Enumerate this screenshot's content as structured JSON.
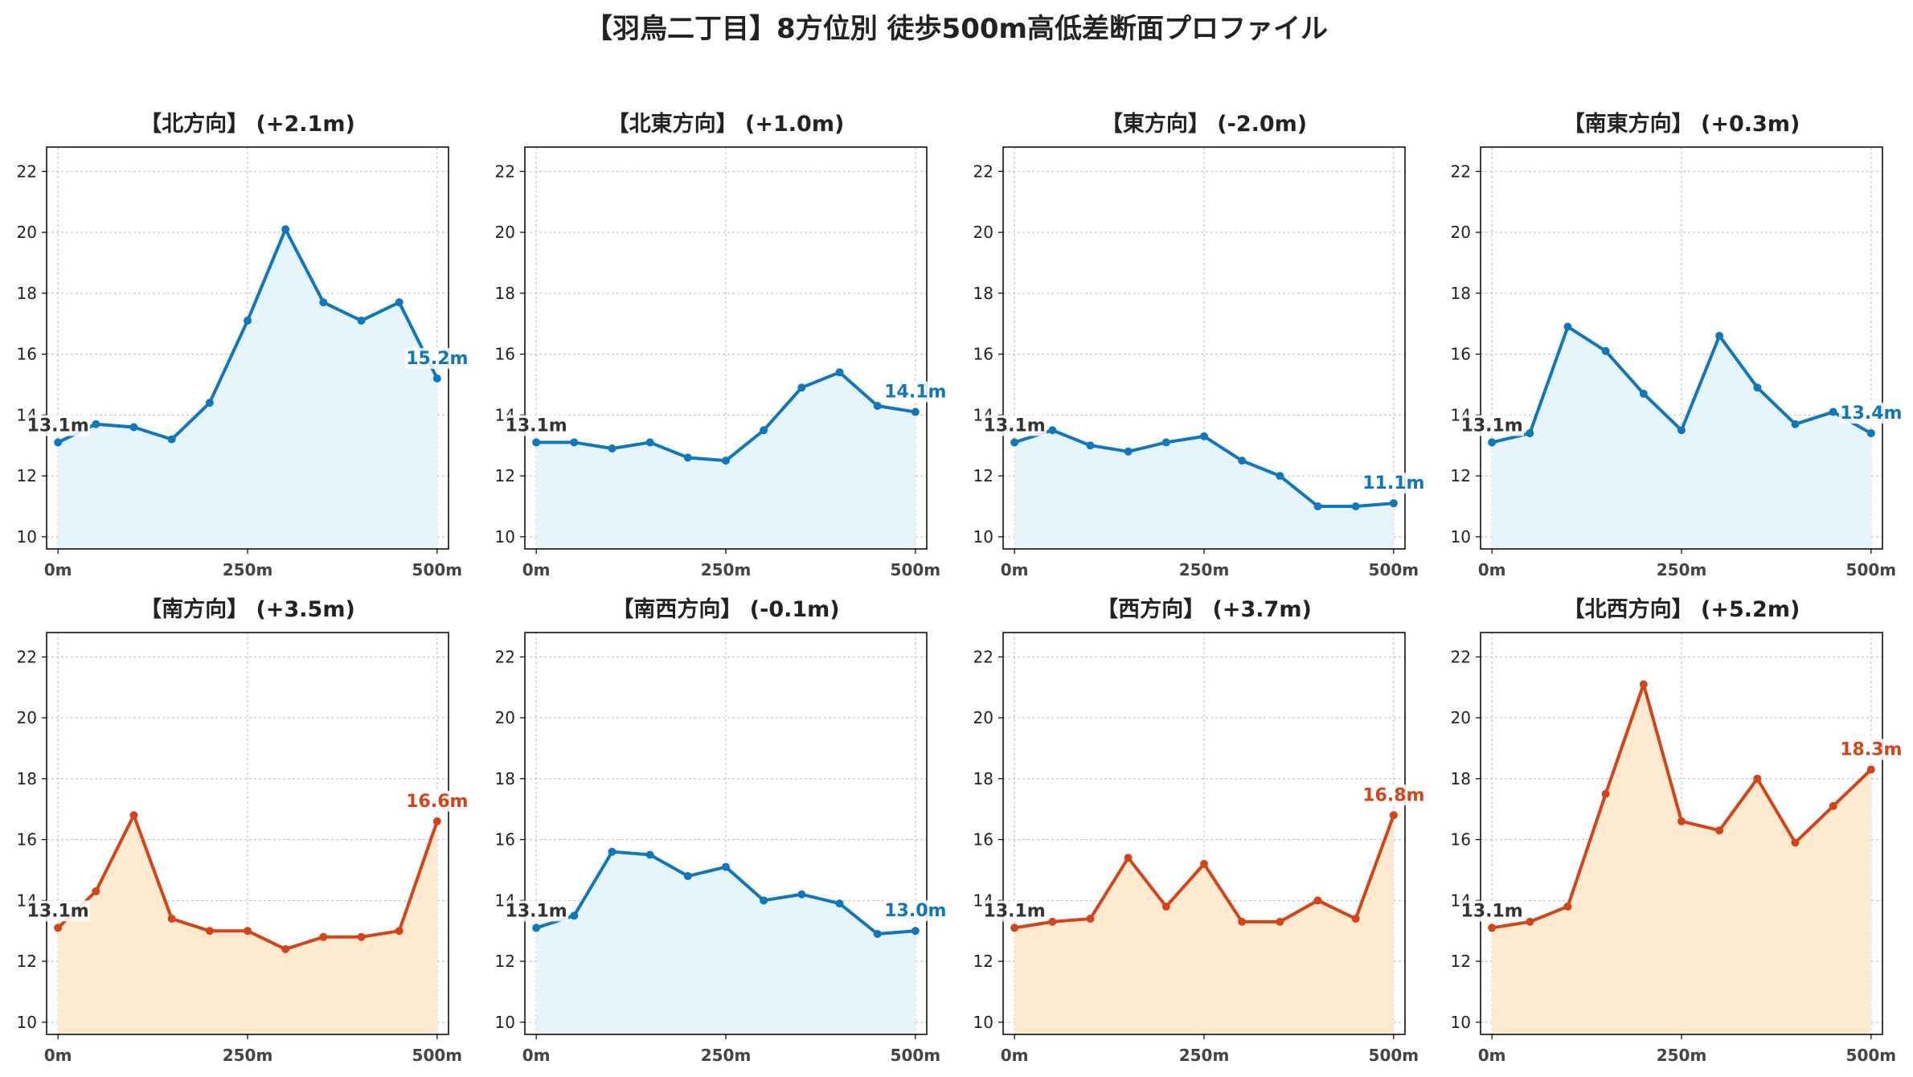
{
  "suptitle": "【羽鳥二丁目】8方位別 徒歩500m高低差断面プロファイル",
  "colors": {
    "up_line": "#D4441A",
    "up_fill": "#FFEAD0",
    "down_line": "#1177BB",
    "down_fill": "#E6F4FB",
    "grid": "#BBBBBB"
  },
  "chart_data": [
    {
      "type": "area",
      "title": "【北方向】 (+2.1m)",
      "trend": "down",
      "x": [
        0,
        50,
        100,
        150,
        200,
        250,
        300,
        350,
        400,
        450,
        500
      ],
      "values": [
        13.1,
        13.7,
        13.6,
        13.2,
        14.4,
        17.1,
        20.1,
        17.7,
        17.1,
        17.7,
        15.2
      ],
      "start_label": "13.1m",
      "end_label": "15.2m",
      "xticks": [
        "0m",
        "250m",
        "500m"
      ],
      "yticks": [
        10,
        12,
        14,
        16,
        18,
        20,
        22
      ],
      "ylim": [
        9.6,
        22.8
      ],
      "xlim": [
        -15,
        515
      ],
      "grid": true
    },
    {
      "type": "area",
      "title": "【北東方向】 (+1.0m)",
      "trend": "down",
      "x": [
        0,
        50,
        100,
        150,
        200,
        250,
        300,
        350,
        400,
        450,
        500
      ],
      "values": [
        13.1,
        13.1,
        12.9,
        13.1,
        12.6,
        12.5,
        13.5,
        14.9,
        15.4,
        14.3,
        14.1
      ],
      "start_label": "13.1m",
      "end_label": "14.1m",
      "xticks": [
        "0m",
        "250m",
        "500m"
      ],
      "yticks": [
        10,
        12,
        14,
        16,
        18,
        20,
        22
      ],
      "ylim": [
        9.6,
        22.8
      ],
      "xlim": [
        -15,
        515
      ],
      "grid": true
    },
    {
      "type": "area",
      "title": "【東方向】 (-2.0m)",
      "trend": "down",
      "x": [
        0,
        50,
        100,
        150,
        200,
        250,
        300,
        350,
        400,
        450,
        500
      ],
      "values": [
        13.1,
        13.5,
        13.0,
        12.8,
        13.1,
        13.3,
        12.5,
        12.0,
        11.0,
        11.0,
        11.1
      ],
      "start_label": "13.1m",
      "end_label": "11.1m",
      "xticks": [
        "0m",
        "250m",
        "500m"
      ],
      "yticks": [
        10,
        12,
        14,
        16,
        18,
        20,
        22
      ],
      "ylim": [
        9.6,
        22.8
      ],
      "xlim": [
        -15,
        515
      ],
      "grid": true
    },
    {
      "type": "area",
      "title": "【南東方向】 (+0.3m)",
      "trend": "down",
      "x": [
        0,
        50,
        100,
        150,
        200,
        250,
        300,
        350,
        400,
        450,
        500
      ],
      "values": [
        13.1,
        13.4,
        16.9,
        16.1,
        14.7,
        13.5,
        16.6,
        14.9,
        13.7,
        14.1,
        13.4
      ],
      "start_label": "13.1m",
      "end_label": "13.4m",
      "xticks": [
        "0m",
        "250m",
        "500m"
      ],
      "yticks": [
        10,
        12,
        14,
        16,
        18,
        20,
        22
      ],
      "ylim": [
        9.6,
        22.8
      ],
      "xlim": [
        -15,
        515
      ],
      "grid": true
    },
    {
      "type": "area",
      "title": "【南方向】 (+3.5m)",
      "trend": "up",
      "x": [
        0,
        50,
        100,
        150,
        200,
        250,
        300,
        350,
        400,
        450,
        500
      ],
      "values": [
        13.1,
        14.3,
        16.8,
        13.4,
        13.0,
        13.0,
        12.4,
        12.8,
        12.8,
        13.0,
        16.6
      ],
      "start_label": "13.1m",
      "end_label": "16.6m",
      "xticks": [
        "0m",
        "250m",
        "500m"
      ],
      "yticks": [
        10,
        12,
        14,
        16,
        18,
        20,
        22
      ],
      "ylim": [
        9.6,
        22.8
      ],
      "xlim": [
        -15,
        515
      ],
      "grid": true
    },
    {
      "type": "area",
      "title": "【南西方向】 (-0.1m)",
      "trend": "down",
      "x": [
        0,
        50,
        100,
        150,
        200,
        250,
        300,
        350,
        400,
        450,
        500
      ],
      "values": [
        13.1,
        13.5,
        15.6,
        15.5,
        14.8,
        15.1,
        14.0,
        14.2,
        13.9,
        12.9,
        13.0
      ],
      "start_label": "13.1m",
      "end_label": "13.0m",
      "xticks": [
        "0m",
        "250m",
        "500m"
      ],
      "yticks": [
        10,
        12,
        14,
        16,
        18,
        20,
        22
      ],
      "ylim": [
        9.6,
        22.8
      ],
      "xlim": [
        -15,
        515
      ],
      "grid": true
    },
    {
      "type": "area",
      "title": "【西方向】 (+3.7m)",
      "trend": "up",
      "x": [
        0,
        50,
        100,
        150,
        200,
        250,
        300,
        350,
        400,
        450,
        500
      ],
      "values": [
        13.1,
        13.3,
        13.4,
        15.4,
        13.8,
        15.2,
        13.3,
        13.3,
        14.0,
        13.4,
        16.8
      ],
      "start_label": "13.1m",
      "end_label": "16.8m",
      "xticks": [
        "0m",
        "250m",
        "500m"
      ],
      "yticks": [
        10,
        12,
        14,
        16,
        18,
        20,
        22
      ],
      "ylim": [
        9.6,
        22.8
      ],
      "xlim": [
        -15,
        515
      ],
      "grid": true
    },
    {
      "type": "area",
      "title": "【北西方向】 (+5.2m)",
      "trend": "up",
      "x": [
        0,
        50,
        100,
        150,
        200,
        250,
        300,
        350,
        400,
        450,
        500
      ],
      "values": [
        13.1,
        13.3,
        13.8,
        17.5,
        21.1,
        16.6,
        16.3,
        18.0,
        15.9,
        17.1,
        18.3
      ],
      "start_label": "13.1m",
      "end_label": "18.3m",
      "xticks": [
        "0m",
        "250m",
        "500m"
      ],
      "yticks": [
        10,
        12,
        14,
        16,
        18,
        20,
        22
      ],
      "ylim": [
        9.6,
        22.8
      ],
      "xlim": [
        -15,
        515
      ],
      "grid": true
    }
  ]
}
